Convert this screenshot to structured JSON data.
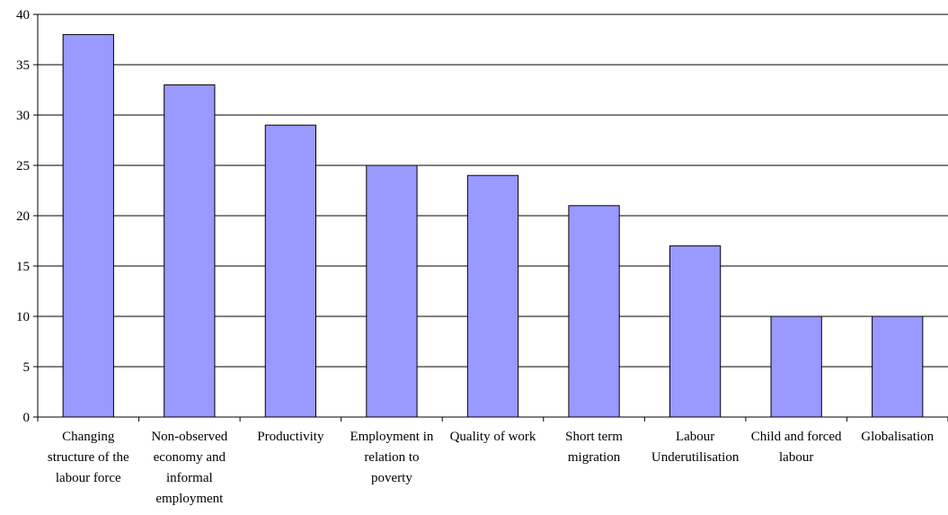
{
  "chart_data": {
    "type": "bar",
    "title": "",
    "xlabel": "",
    "ylabel": "",
    "ylim": [
      0,
      40
    ],
    "yticks": [
      0,
      5,
      10,
      15,
      20,
      25,
      30,
      35,
      40
    ],
    "grid": true,
    "legend": "none",
    "bar_color": "#9999ff",
    "categories": [
      [
        "Changing",
        "structure of the",
        "labour force"
      ],
      [
        "Non-observed",
        "economy and",
        "informal",
        "employment"
      ],
      [
        "Productivity"
      ],
      [
        "Employment in",
        "relation to",
        "poverty"
      ],
      [
        "Quality of work"
      ],
      [
        "Short term",
        "migration"
      ],
      [
        "Labour",
        "Underutilisation"
      ],
      [
        "Child and forced",
        "labour"
      ],
      [
        "Globalisation"
      ]
    ],
    "values": [
      38,
      33,
      29,
      25,
      24,
      21,
      17,
      10,
      10
    ]
  }
}
